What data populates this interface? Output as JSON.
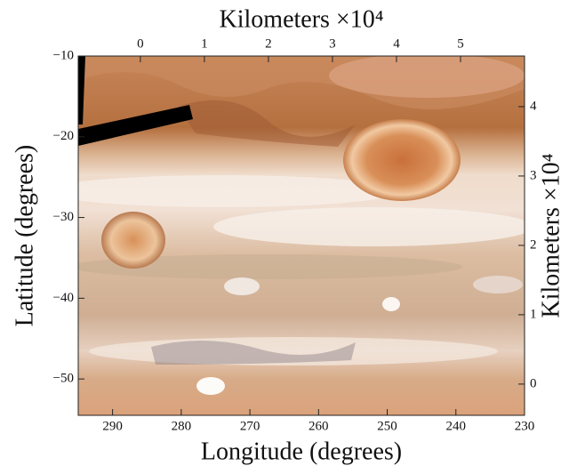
{
  "chart_data": {
    "type": "image",
    "xlabel": "Longitude (degrees)",
    "ylabel": "Latitude (degrees)",
    "x2label": "Kilometers ×10⁴",
    "y2label": "Kilometers ×10⁴",
    "xlim": [
      295,
      230
    ],
    "xticks": [
      290,
      280,
      270,
      260,
      250,
      240,
      230
    ],
    "ylim": [
      -10,
      -54.5
    ],
    "yticks": [
      {
        "value": -10,
        "label": "−10"
      },
      {
        "value": -20,
        "label": "−20"
      },
      {
        "value": -30,
        "label": "−30"
      },
      {
        "value": -40,
        "label": "−40"
      },
      {
        "value": -50,
        "label": "−50"
      }
    ],
    "x2lim": [
      -0.97,
      6.0
    ],
    "x2ticks": [
      0,
      1,
      2,
      3,
      4,
      5
    ],
    "y2lim": [
      -0.45,
      4.73
    ],
    "y2ticks": [
      0,
      1,
      2,
      3,
      4
    ]
  }
}
